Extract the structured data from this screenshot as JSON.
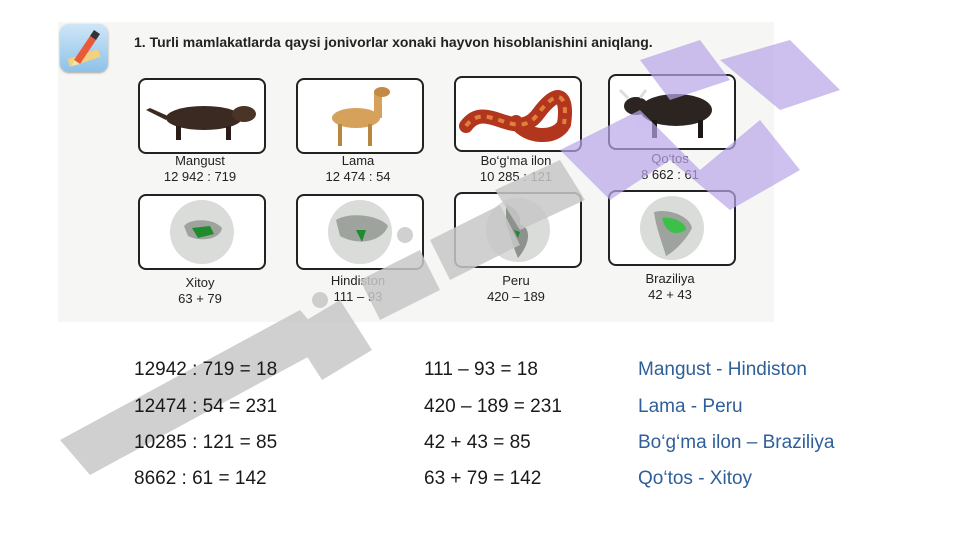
{
  "task": {
    "number": "1.",
    "text": "Turli mamlakatlarda qaysi jonivorlar xonaki hayvon hisoblanishini aniqlang."
  },
  "animals": [
    {
      "name": "Mangust",
      "expr": "12 942 : 719",
      "icon": "mongoose-image"
    },
    {
      "name": "Lama",
      "expr": "12 474 : 54",
      "icon": "llama-image"
    },
    {
      "name": "Bo‘g‘ma ilon",
      "expr": "10 285 : 121",
      "icon": "snake-image"
    },
    {
      "name": "Qo‘tos",
      "expr": "8 662 : 61",
      "icon": "yak-image"
    }
  ],
  "countries": [
    {
      "name": "Xitoy",
      "expr": "63 + 79",
      "icon": "globe-china-image"
    },
    {
      "name": "Hindiston",
      "expr": "111 – 93",
      "icon": "globe-india-image"
    },
    {
      "name": "Peru",
      "expr": "420 – 189",
      "icon": "globe-peru-image"
    },
    {
      "name": "Braziliya",
      "expr": "42 + 43",
      "icon": "globe-brazil-image"
    }
  ],
  "solutions": {
    "divisions": [
      "12942 : 719 = 18",
      "12474 : 54 = 231",
      "10285 : 121 = 85",
      "8662 : 61 = 142"
    ],
    "operations": [
      "111 – 93 = 18",
      "420 – 189 = 231",
      "42 + 43 = 85",
      "63 + 79 = 142"
    ],
    "matches": [
      "Mangust - Hindiston",
      "Lama - Peru",
      "Bo‘g‘ma ilon – Braziliya",
      "Qo‘tos - Xitoy"
    ]
  },
  "colors": {
    "answer": "#2f5f9a",
    "watermark_gray": "#c8c8c8",
    "watermark_purple": "#b9a6e8"
  }
}
